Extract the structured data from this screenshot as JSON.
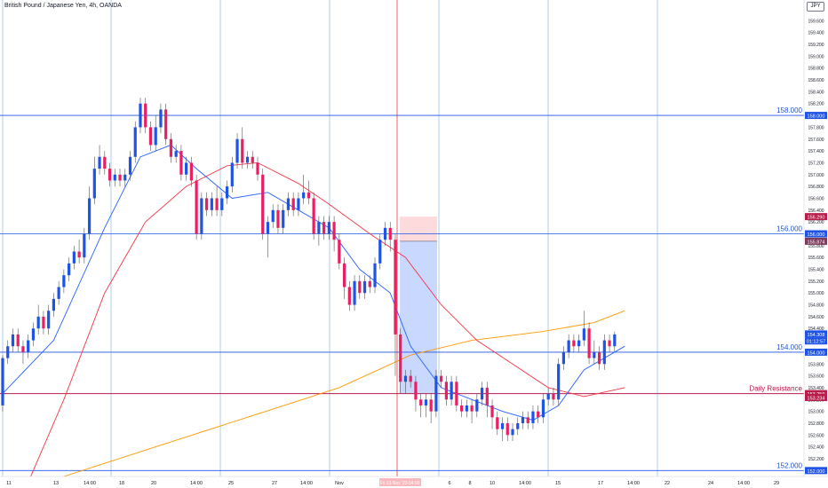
{
  "header": {
    "title": "British Pound / Japanese Yen, 4h, OANDA",
    "currency": "JPY"
  },
  "colors": {
    "up": "#1e53e5",
    "down": "#e91e63",
    "ma_fast": "#2962ff",
    "ma_mid": "#f23645",
    "ma_slow": "#ff9800",
    "level_line": "#1e53e5",
    "resistance_line": "#b71c4b",
    "short_box_profit": "#2962ff",
    "short_box_stop": "#f23645"
  },
  "chart_data": {
    "type": "candlestick",
    "y_axis": {
      "min": 151.9,
      "max": 159.95,
      "ticks": [
        "159.600",
        "159.400",
        "159.200",
        "159.000",
        "158.800",
        "158.600",
        "158.400",
        "158.200",
        "158.000",
        "157.800",
        "157.600",
        "157.400",
        "157.200",
        "157.000",
        "156.800",
        "156.600",
        "156.400",
        "156.200",
        "156.000",
        "155.800",
        "155.600",
        "155.400",
        "155.200",
        "155.000",
        "154.800",
        "154.600",
        "154.400",
        "154.200",
        "154.000",
        "153.800",
        "153.600",
        "153.400",
        "153.200",
        "153.000",
        "152.800",
        "152.600",
        "152.400",
        "152.200",
        "152.000"
      ]
    },
    "x_axis": {
      "labels": [
        "11",
        "13",
        "14:00",
        "18",
        "20",
        "14:00",
        "25",
        "27",
        "14:00",
        "Nov",
        "6",
        "8",
        "10",
        "14:00",
        "15",
        "17",
        "14:00",
        "22",
        "24",
        "14:00",
        "29"
      ],
      "time_highlight": "Fri 03 Nov '23  04:00"
    },
    "horizontal_levels": [
      {
        "price": 158.0,
        "label": "158.000",
        "axis_label": "158.000"
      },
      {
        "price": 156.0,
        "label": "156.000",
        "axis_label": "156.000"
      },
      {
        "price": 154.0,
        "label": "154.000",
        "axis_label": "154.000"
      },
      {
        "price": 153.3,
        "label": "Daily Resistance",
        "axis_label": "153.259"
      },
      {
        "price": 152.0,
        "label": "152.000",
        "axis_label": "152.000"
      }
    ],
    "axis_badges": [
      {
        "price": 156.29,
        "text": "156.290"
      },
      {
        "price": 155.874,
        "text": "155.874"
      },
      {
        "price": 154.308,
        "text": "154.308"
      },
      {
        "price": 154.19,
        "text": "01:12:57"
      },
      {
        "price": 153.234,
        "text": "153.234"
      }
    ],
    "short_position": {
      "entry": 155.874,
      "stop": 156.29,
      "target": 153.3
    },
    "candles": [
      [
        153.1,
        153.9,
        153.0,
        153.95
      ],
      [
        153.9,
        154.1,
        153.8,
        154.2
      ],
      [
        154.1,
        154.3,
        154.0,
        154.4
      ],
      [
        154.3,
        154.1,
        154.0,
        154.4
      ],
      [
        154.1,
        154.0,
        153.8,
        154.2
      ],
      [
        154.0,
        154.2,
        153.9,
        154.3
      ],
      [
        154.2,
        154.4,
        154.1,
        154.5
      ],
      [
        154.4,
        154.6,
        154.3,
        154.8
      ],
      [
        154.6,
        154.4,
        154.3,
        154.7
      ],
      [
        154.4,
        154.7,
        154.3,
        154.8
      ],
      [
        154.7,
        154.9,
        154.6,
        155.0
      ],
      [
        154.9,
        155.1,
        154.8,
        155.2
      ],
      [
        155.1,
        155.3,
        155.0,
        155.4
      ],
      [
        155.3,
        155.5,
        155.2,
        155.6
      ],
      [
        155.5,
        155.7,
        155.4,
        155.8
      ],
      [
        155.7,
        155.6,
        155.5,
        155.9
      ],
      [
        155.6,
        156.0,
        155.5,
        156.1
      ],
      [
        156.0,
        156.6,
        155.9,
        156.8
      ],
      [
        156.6,
        157.1,
        156.5,
        157.3
      ],
      [
        157.1,
        157.3,
        157.0,
        157.5
      ],
      [
        157.3,
        157.1,
        157.0,
        157.4
      ],
      [
        157.1,
        156.9,
        156.8,
        157.2
      ],
      [
        156.9,
        157.0,
        156.8,
        157.1
      ],
      [
        157.0,
        156.9,
        156.8,
        157.1
      ],
      [
        156.9,
        157.0,
        156.8,
        157.1
      ],
      [
        157.0,
        157.3,
        156.9,
        157.4
      ],
      [
        157.3,
        157.8,
        157.2,
        157.9
      ],
      [
        157.8,
        158.2,
        157.7,
        158.3
      ],
      [
        158.2,
        157.8,
        157.7,
        158.3
      ],
      [
        157.8,
        157.5,
        157.4,
        157.9
      ],
      [
        157.5,
        157.8,
        157.4,
        158.0
      ],
      [
        157.8,
        158.1,
        157.7,
        158.2
      ],
      [
        158.1,
        157.6,
        157.5,
        158.2
      ],
      [
        157.6,
        157.3,
        157.2,
        157.7
      ],
      [
        157.3,
        157.4,
        157.2,
        157.5
      ],
      [
        157.4,
        157.0,
        156.9,
        157.5
      ],
      [
        157.0,
        157.2,
        156.9,
        157.3
      ],
      [
        157.2,
        156.9,
        156.8,
        157.3
      ],
      [
        156.9,
        156.0,
        155.9,
        157.0
      ],
      [
        156.0,
        156.6,
        155.9,
        156.7
      ],
      [
        156.6,
        156.4,
        156.3,
        156.7
      ],
      [
        156.4,
        156.6,
        156.3,
        156.7
      ],
      [
        156.6,
        156.4,
        156.3,
        156.8
      ],
      [
        156.4,
        156.6,
        156.3,
        156.7
      ],
      [
        156.6,
        156.8,
        156.5,
        156.9
      ],
      [
        156.8,
        157.2,
        156.7,
        157.3
      ],
      [
        157.2,
        157.6,
        157.1,
        157.7
      ],
      [
        157.6,
        157.2,
        157.1,
        157.8
      ],
      [
        157.2,
        157.3,
        157.1,
        157.4
      ],
      [
        157.3,
        157.2,
        157.1,
        157.4
      ],
      [
        157.2,
        157.0,
        156.9,
        157.3
      ],
      [
        157.0,
        156.0,
        155.9,
        157.1
      ],
      [
        156.0,
        156.2,
        155.6,
        156.3
      ],
      [
        156.2,
        156.4,
        156.1,
        156.5
      ],
      [
        156.4,
        156.1,
        156.0,
        156.5
      ],
      [
        156.1,
        156.4,
        156.0,
        156.5
      ],
      [
        156.4,
        156.6,
        156.3,
        156.7
      ],
      [
        156.6,
        156.4,
        156.3,
        156.7
      ],
      [
        156.4,
        156.6,
        156.3,
        156.7
      ],
      [
        156.6,
        156.7,
        156.5,
        157.0
      ],
      [
        156.7,
        156.6,
        156.5,
        156.9
      ],
      [
        156.6,
        156.0,
        155.9,
        156.7
      ],
      [
        156.0,
        156.2,
        155.8,
        156.3
      ],
      [
        156.2,
        156.0,
        155.9,
        156.3
      ],
      [
        156.0,
        156.2,
        155.9,
        156.3
      ],
      [
        156.2,
        155.9,
        155.7,
        156.3
      ],
      [
        155.9,
        155.5,
        155.4,
        156.0
      ],
      [
        155.5,
        155.1,
        154.9,
        155.6
      ],
      [
        155.1,
        154.8,
        154.7,
        155.2
      ],
      [
        154.8,
        155.2,
        154.7,
        155.3
      ],
      [
        155.2,
        155.0,
        154.9,
        155.3
      ],
      [
        155.0,
        155.2,
        154.9,
        155.3
      ],
      [
        155.2,
        155.1,
        155.0,
        155.3
      ],
      [
        155.1,
        155.5,
        155.0,
        155.6
      ],
      [
        155.5,
        155.9,
        155.4,
        156.0
      ],
      [
        155.9,
        156.1,
        155.8,
        156.2
      ],
      [
        156.1,
        155.9,
        155.7,
        156.2
      ],
      [
        155.9,
        154.3,
        153.6,
        156.0
      ],
      [
        154.3,
        153.5,
        153.3,
        154.4
      ],
      [
        153.5,
        153.6,
        153.3,
        153.7
      ],
      [
        153.6,
        153.5,
        153.4,
        153.7
      ],
      [
        153.5,
        153.2,
        153.0,
        153.6
      ],
      [
        153.2,
        153.1,
        152.9,
        153.3
      ],
      [
        153.1,
        153.2,
        152.9,
        153.3
      ],
      [
        153.2,
        153.0,
        152.8,
        153.3
      ],
      [
        153.0,
        153.6,
        152.9,
        153.7
      ],
      [
        153.6,
        153.5,
        153.4,
        153.7
      ],
      [
        153.5,
        153.2,
        153.1,
        153.6
      ],
      [
        153.2,
        153.5,
        153.1,
        153.6
      ],
      [
        153.5,
        153.1,
        153.0,
        153.6
      ],
      [
        153.1,
        153.0,
        152.9,
        153.2
      ],
      [
        153.0,
        153.1,
        152.9,
        153.2
      ],
      [
        153.1,
        153.0,
        152.8,
        153.2
      ],
      [
        153.0,
        153.2,
        152.9,
        153.3
      ],
      [
        153.2,
        153.4,
        153.1,
        153.5
      ],
      [
        153.4,
        153.1,
        152.9,
        153.5
      ],
      [
        153.1,
        152.9,
        152.7,
        153.2
      ],
      [
        152.9,
        152.7,
        152.6,
        153.0
      ],
      [
        152.7,
        152.8,
        152.5,
        152.9
      ],
      [
        152.8,
        152.6,
        152.5,
        152.9
      ],
      [
        152.6,
        152.7,
        152.5,
        152.8
      ],
      [
        152.7,
        152.8,
        152.6,
        152.9
      ],
      [
        152.8,
        152.9,
        152.7,
        153.0
      ],
      [
        152.9,
        152.8,
        152.7,
        153.0
      ],
      [
        152.8,
        153.0,
        152.7,
        153.1
      ],
      [
        153.0,
        152.9,
        152.8,
        153.1
      ],
      [
        152.9,
        153.2,
        152.8,
        153.3
      ],
      [
        153.2,
        153.3,
        153.1,
        153.4
      ],
      [
        153.3,
        153.2,
        153.1,
        153.4
      ],
      [
        153.2,
        153.8,
        153.1,
        153.9
      ],
      [
        153.8,
        154.0,
        153.7,
        154.1
      ],
      [
        154.0,
        154.2,
        153.9,
        154.3
      ],
      [
        154.2,
        154.1,
        154.0,
        154.3
      ],
      [
        154.1,
        154.2,
        154.0,
        154.3
      ],
      [
        154.2,
        154.4,
        154.1,
        154.7
      ],
      [
        154.4,
        153.9,
        153.8,
        154.5
      ],
      [
        153.9,
        154.0,
        153.8,
        154.2
      ],
      [
        154.0,
        153.8,
        153.7,
        154.1
      ],
      [
        153.8,
        154.2,
        153.7,
        154.3
      ],
      [
        154.2,
        154.1,
        154.0,
        154.3
      ],
      [
        154.1,
        154.3,
        154.0,
        154.35
      ]
    ],
    "ma_fast": [
      [
        0,
        153.3
      ],
      [
        10,
        154.2
      ],
      [
        20,
        156.1
      ],
      [
        27,
        157.3
      ],
      [
        33,
        157.5
      ],
      [
        38,
        157.1
      ],
      [
        45,
        156.6
      ],
      [
        52,
        156.7
      ],
      [
        58,
        156.4
      ],
      [
        64,
        156.1
      ],
      [
        70,
        155.4
      ],
      [
        76,
        155.0
      ],
      [
        80,
        154.1
      ],
      [
        86,
        153.4
      ],
      [
        92,
        153.2
      ],
      [
        98,
        153.0
      ],
      [
        104,
        152.85
      ],
      [
        109,
        153.1
      ],
      [
        114,
        153.7
      ],
      [
        122,
        154.1
      ]
    ],
    "ma_mid": [
      [
        5,
        151.8
      ],
      [
        12,
        153.2
      ],
      [
        20,
        155.0
      ],
      [
        28,
        156.2
      ],
      [
        36,
        156.8
      ],
      [
        44,
        157.15
      ],
      [
        50,
        157.2
      ],
      [
        58,
        156.85
      ],
      [
        64,
        156.5
      ],
      [
        72,
        156.0
      ],
      [
        79,
        155.6
      ],
      [
        86,
        154.8
      ],
      [
        93,
        154.2
      ],
      [
        100,
        153.8
      ],
      [
        107,
        153.4
      ],
      [
        114,
        153.25
      ],
      [
        122,
        153.4
      ]
    ],
    "ma_slow": [
      [
        12,
        151.9
      ],
      [
        30,
        152.4
      ],
      [
        48,
        152.9
      ],
      [
        66,
        153.4
      ],
      [
        80,
        153.95
      ],
      [
        92,
        154.2
      ],
      [
        106,
        154.35
      ],
      [
        116,
        154.5
      ],
      [
        122,
        154.7
      ]
    ]
  }
}
